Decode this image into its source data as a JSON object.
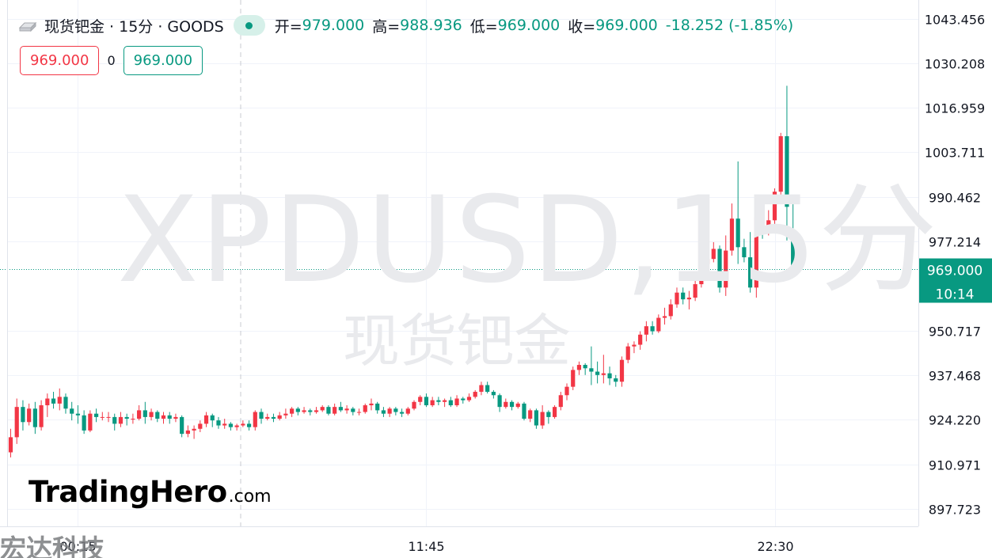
{
  "header": {
    "symbol": "现货钯金 · 15分 · GOODS",
    "open_label": "开=",
    "open": "979.000",
    "high_label": "高=",
    "high": "988.936",
    "low_label": "低=",
    "low": "969.000",
    "close_label": "收=",
    "close": "969.000",
    "change": "-18.252 (-1.85%)"
  },
  "trade": {
    "sell_price": "969.000",
    "spread": "0",
    "buy_price": "969.000"
  },
  "watermark": {
    "main": "XPDUSD,15分",
    "sub": "现货钯金"
  },
  "logo": {
    "brand": "TradingHero",
    "domain": ".com"
  },
  "corner_mark": "宏达科技",
  "current_price_label": {
    "price": "969.000",
    "countdown": "10:14"
  },
  "colors": {
    "up": "#f23645",
    "down": "#089981",
    "grid": "#f0f3fa",
    "axis_text": "#131722"
  },
  "chart_data": {
    "type": "candlestick",
    "y_ticks": [
      "1043.456",
      "1030.208",
      "1016.959",
      "1003.711",
      "990.462",
      "977.214",
      "950.717",
      "937.468",
      "924.220",
      "910.971",
      "897.723"
    ],
    "x_ticks": [
      "00:15",
      "11:45",
      "22:30"
    ],
    "ylim": [
      892.5,
      1049
    ],
    "last_price": 969.0,
    "candles": [
      [
        914.5,
        919.0,
        913.0,
        921.5
      ],
      [
        919.0,
        928.0,
        917.0,
        930.5
      ],
      [
        928.0,
        923.5,
        921.0,
        930.0
      ],
      [
        923.5,
        927.5,
        922.5,
        929.0
      ],
      [
        927.5,
        922.0,
        920.0,
        929.5
      ],
      [
        922.0,
        928.5,
        921.0,
        930.0
      ],
      [
        928.5,
        930.5,
        925.0,
        932.0
      ],
      [
        930.5,
        929.0,
        927.5,
        932.5
      ],
      [
        929.0,
        931.0,
        927.0,
        933.5
      ],
      [
        931.0,
        927.5,
        926.0,
        932.0
      ],
      [
        927.5,
        926.0,
        924.0,
        929.5
      ],
      [
        926.0,
        925.5,
        923.0,
        928.5
      ],
      [
        925.5,
        921.0,
        920.0,
        927.0
      ],
      [
        921.0,
        926.0,
        920.5,
        927.0
      ],
      [
        926.0,
        925.0,
        923.5,
        927.5
      ],
      [
        925.0,
        925.0,
        924.0,
        926.5
      ],
      [
        925.0,
        925.0,
        923.5,
        926.5
      ],
      [
        925.0,
        923.0,
        921.0,
        926.0
      ],
      [
        923.0,
        925.0,
        922.0,
        926.5
      ],
      [
        925.0,
        924.5,
        922.5,
        926.0
      ],
      [
        924.5,
        924.5,
        923.0,
        926.0
      ],
      [
        924.5,
        927.0,
        924.0,
        928.5
      ],
      [
        927.0,
        925.0,
        923.0,
        929.5
      ],
      [
        925.0,
        926.5,
        924.0,
        927.5
      ],
      [
        926.5,
        924.5,
        923.5,
        927.0
      ],
      [
        924.5,
        925.5,
        923.0,
        926.5
      ],
      [
        925.5,
        924.5,
        923.0,
        926.5
      ],
      [
        924.5,
        925.0,
        923.5,
        926.0
      ],
      [
        925.0,
        920.0,
        919.0,
        925.5
      ],
      [
        920.0,
        921.0,
        919.0,
        922.5
      ],
      [
        921.0,
        921.5,
        918.5,
        922.5
      ],
      [
        921.5,
        923.0,
        920.5,
        924.0
      ],
      [
        923.0,
        925.5,
        922.0,
        926.5
      ],
      [
        925.5,
        924.0,
        922.0,
        926.0
      ],
      [
        924.0,
        922.5,
        921.5,
        925.0
      ],
      [
        922.5,
        923.0,
        921.5,
        924.5
      ],
      [
        923.0,
        922.0,
        921.0,
        923.5
      ],
      [
        922.0,
        922.5,
        921.0,
        923.0
      ],
      [
        922.5,
        923.0,
        922.0,
        924.0
      ],
      [
        923.0,
        922.0,
        921.0,
        924.0
      ],
      [
        922.0,
        926.5,
        921.0,
        927.0
      ],
      [
        926.5,
        924.5,
        923.0,
        927.5
      ],
      [
        924.5,
        925.0,
        924.0,
        926.0
      ],
      [
        925.0,
        924.5,
        923.5,
        926.0
      ],
      [
        924.5,
        925.5,
        924.0,
        926.5
      ],
      [
        925.5,
        926.0,
        924.5,
        927.5
      ],
      [
        926.0,
        927.5,
        925.0,
        928.0
      ],
      [
        927.5,
        926.5,
        925.5,
        928.0
      ],
      [
        926.5,
        927.0,
        926.0,
        928.0
      ],
      [
        927.0,
        926.5,
        925.5,
        927.5
      ],
      [
        926.5,
        927.0,
        926.0,
        928.0
      ],
      [
        927.0,
        928.0,
        926.5,
        928.5
      ],
      [
        928.0,
        926.0,
        925.5,
        928.5
      ],
      [
        926.0,
        928.0,
        925.5,
        929.0
      ],
      [
        928.0,
        927.0,
        926.5,
        929.5
      ],
      [
        927.0,
        927.5,
        926.0,
        928.5
      ],
      [
        927.5,
        926.5,
        925.5,
        928.0
      ],
      [
        926.5,
        926.5,
        925.5,
        927.5
      ],
      [
        926.5,
        928.5,
        926.0,
        929.0
      ],
      [
        928.5,
        929.0,
        927.0,
        930.5
      ],
      [
        929.0,
        927.0,
        926.0,
        929.5
      ],
      [
        927.0,
        926.0,
        925.0,
        928.0
      ],
      [
        926.0,
        927.5,
        925.0,
        928.0
      ],
      [
        927.5,
        926.5,
        925.5,
        928.0
      ],
      [
        926.5,
        926.0,
        925.0,
        927.5
      ],
      [
        926.0,
        927.5,
        925.5,
        928.0
      ],
      [
        927.5,
        929.5,
        927.0,
        930.0
      ],
      [
        929.5,
        931.0,
        928.5,
        931.5
      ],
      [
        931.0,
        928.5,
        928.0,
        932.0
      ],
      [
        928.5,
        930.0,
        928.0,
        931.0
      ],
      [
        930.0,
        929.5,
        928.5,
        931.0
      ],
      [
        929.5,
        930.0,
        928.0,
        930.5
      ],
      [
        930.0,
        928.5,
        928.0,
        931.0
      ],
      [
        928.5,
        930.5,
        928.0,
        931.5
      ],
      [
        930.5,
        930.0,
        929.0,
        931.0
      ],
      [
        930.0,
        931.0,
        929.5,
        932.0
      ],
      [
        931.0,
        932.5,
        930.5,
        933.0
      ],
      [
        932.5,
        934.5,
        931.5,
        935.5
      ],
      [
        934.5,
        932.5,
        932.0,
        935.5
      ],
      [
        932.5,
        931.5,
        930.5,
        933.0
      ],
      [
        931.5,
        928.0,
        926.5,
        932.0
      ],
      [
        928.0,
        929.5,
        927.5,
        930.5
      ],
      [
        929.5,
        928.0,
        927.0,
        930.0
      ],
      [
        928.0,
        929.0,
        927.5,
        929.5
      ],
      [
        929.0,
        924.5,
        924.0,
        929.5
      ],
      [
        924.5,
        927.0,
        923.5,
        927.5
      ],
      [
        927.0,
        922.5,
        921.5,
        927.5
      ],
      [
        922.5,
        926.5,
        921.5,
        928.5
      ],
      [
        926.5,
        925.0,
        923.0,
        927.0
      ],
      [
        925.0,
        928.0,
        924.5,
        928.5
      ],
      [
        928.0,
        931.5,
        927.0,
        932.5
      ],
      [
        931.5,
        934.0,
        930.0,
        935.0
      ],
      [
        934.0,
        939.0,
        933.0,
        940.0
      ],
      [
        939.0,
        940.5,
        937.5,
        941.5
      ],
      [
        940.5,
        939.5,
        937.5,
        941.0
      ],
      [
        939.5,
        938.5,
        934.5,
        946.0
      ],
      [
        938.5,
        937.5,
        935.0,
        941.5
      ],
      [
        937.5,
        938.0,
        935.0,
        943.5
      ],
      [
        938.0,
        936.5,
        934.5,
        940.0
      ],
      [
        936.5,
        935.5,
        934.0,
        937.5
      ],
      [
        935.5,
        942.0,
        934.0,
        943.0
      ],
      [
        942.0,
        946.0,
        941.0,
        947.0
      ],
      [
        946.0,
        946.5,
        944.0,
        947.5
      ],
      [
        946.5,
        949.5,
        945.0,
        950.5
      ],
      [
        949.5,
        952.0,
        947.5,
        953.5
      ],
      [
        952.0,
        950.5,
        949.5,
        953.5
      ],
      [
        950.5,
        954.5,
        950.0,
        955.5
      ],
      [
        954.5,
        955.0,
        952.5,
        957.5
      ],
      [
        955.0,
        958.5,
        954.0,
        960.0
      ],
      [
        958.5,
        962.0,
        957.5,
        963.5
      ],
      [
        962.0,
        960.0,
        958.5,
        963.5
      ],
      [
        960.0,
        960.5,
        957.0,
        962.5
      ],
      [
        960.5,
        964.5,
        959.5,
        966.5
      ],
      [
        964.5,
        970.5,
        963.5,
        975.0
      ],
      [
        970.5,
        972.0,
        968.5,
        974.0
      ],
      [
        972.0,
        975.0,
        971.0,
        977.0
      ],
      [
        975.0,
        963.5,
        962.0,
        976.0
      ],
      [
        963.5,
        974.5,
        961.0,
        979.0
      ],
      [
        974.5,
        984.0,
        973.0,
        988.5
      ],
      [
        984.0,
        975.5,
        970.5,
        1001.0
      ],
      [
        975.5,
        972.5,
        971.0,
        978.0
      ],
      [
        972.5,
        963.5,
        962.0,
        980.0
      ],
      [
        963.5,
        984.5,
        960.5,
        985.0
      ],
      [
        984.5,
        980.0,
        978.0,
        986.0
      ],
      [
        980.0,
        983.5,
        979.0,
        986.5
      ],
      [
        983.5,
        992.0,
        981.0,
        993.0
      ],
      [
        992.0,
        1008.5,
        990.0,
        1009.5
      ],
      [
        1008.5,
        987.5,
        977.5,
        1023.5
      ],
      [
        979.0,
        969.0,
        969.0,
        988.936
      ]
    ]
  }
}
